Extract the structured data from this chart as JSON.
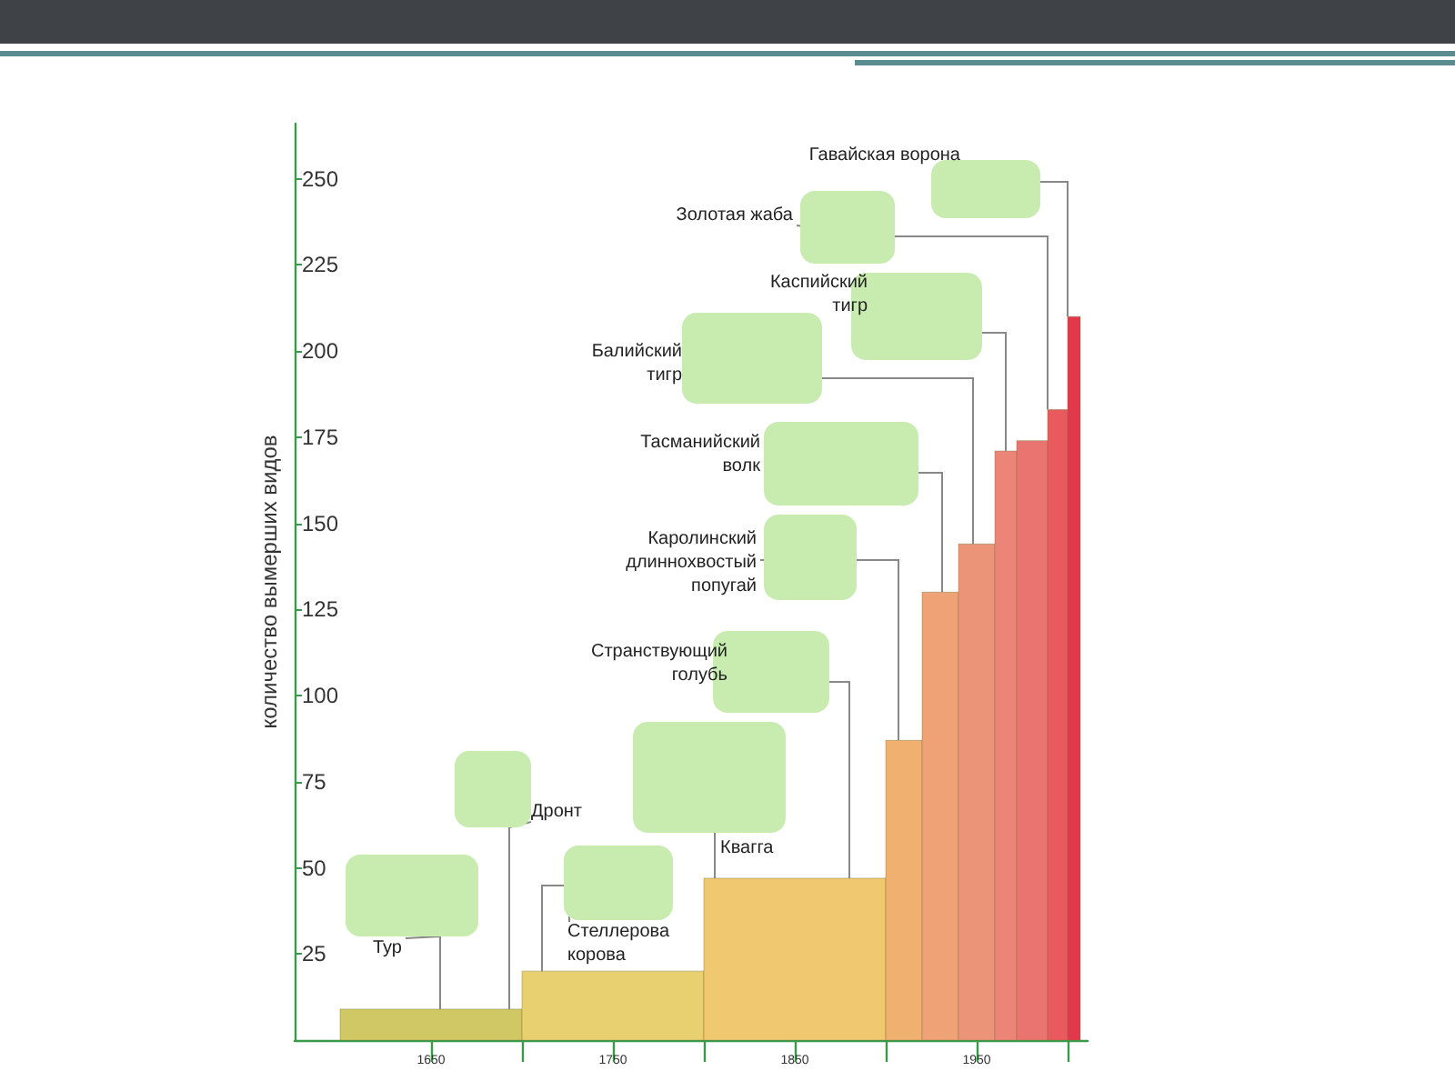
{
  "chart_data": {
    "type": "histogram",
    "ylabel": "количество вымерших видов",
    "bins": [
      1600,
      1700,
      1800,
      1900,
      1920,
      1940,
      1960,
      1972,
      1989,
      2000,
      2007
    ],
    "values": [
      9,
      20,
      47,
      87,
      130,
      144,
      171,
      174,
      183,
      210
    ],
    "colors": [
      "#cfc864",
      "#e8d070",
      "#f0c870",
      "#f0b070",
      "#eea276",
      "#ec9478",
      "#ec8478",
      "#ea7470",
      "#e85a5e",
      "#e2384c"
    ],
    "xlim": [
      1575,
      2011
    ],
    "xticks": [
      {
        "value": 1650,
        "label": "1650"
      },
      {
        "value": 1700,
        "label": null
      },
      {
        "value": 1750,
        "label": "1750"
      },
      {
        "value": 1800,
        "label": null
      },
      {
        "value": 1850,
        "label": "1850"
      },
      {
        "value": 1900,
        "label": null
      },
      {
        "value": 1950,
        "label": "1950"
      },
      {
        "value": 2000,
        "label": null
      }
    ],
    "ylim": [
      0,
      266
    ],
    "yticks": [
      25,
      50,
      75,
      100,
      125,
      150,
      175,
      200,
      225,
      250
    ],
    "annotations": [
      {
        "text": "Тур",
        "x": 1655,
        "y": 9
      },
      {
        "text": "Дронт",
        "x": 1693,
        "y": 9
      },
      {
        "text": "Стеллерова корова",
        "x": 1711,
        "y": 20
      },
      {
        "text": "Квагга",
        "x": 1806,
        "y": 47
      },
      {
        "text": "Странствующий голубь",
        "x": 1880,
        "y": 47
      },
      {
        "text": "Каролинский длиннохвостый попугай",
        "x": 1907,
        "y": 87
      },
      {
        "text": "Тасманийский волк",
        "x": 1931,
        "y": 130
      },
      {
        "text": "Балийский тигр",
        "x": 1948,
        "y": 144
      },
      {
        "text": "Каспийский тигр",
        "x": 1966,
        "y": 171
      },
      {
        "text": "Золотая жаба",
        "x": 1989,
        "y": 183
      },
      {
        "text": "Гавайская ворона",
        "x": 2000,
        "y": 210
      }
    ]
  }
}
